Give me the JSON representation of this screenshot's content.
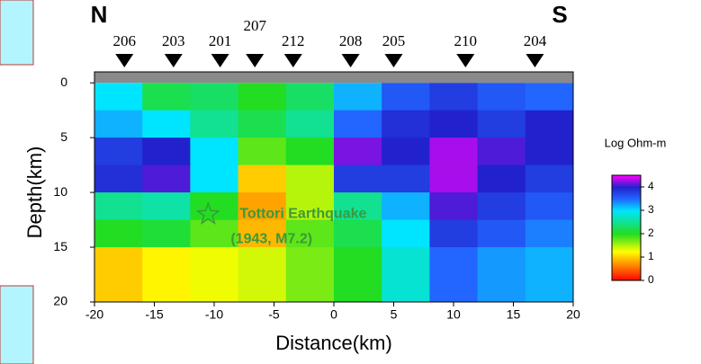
{
  "chart_data": {
    "type": "heatmap",
    "x_label": "Distance(km)",
    "y_label": "Depth(km)",
    "left_label": "N",
    "right_label": "S",
    "xlim": [
      -20,
      20
    ],
    "xticks": [
      -20,
      -15,
      -10,
      -5,
      0,
      5,
      10,
      15,
      20
    ],
    "ylim": [
      -1,
      20
    ],
    "yticks": [
      0,
      5,
      10,
      15,
      20
    ],
    "x_edges": [
      -20,
      -16,
      -12,
      -8,
      -4,
      0,
      4,
      8,
      12,
      16,
      20
    ],
    "y_edges": [
      0,
      2.5,
      5,
      7.5,
      10,
      12.5,
      15,
      17.5,
      20
    ],
    "z": [
      [
        3.0,
        2.2,
        2.3,
        2.0,
        2.3,
        3.2,
        3.6,
        3.8,
        3.6,
        3.5
      ],
      [
        3.2,
        3.0,
        2.5,
        2.2,
        2.5,
        3.5,
        3.9,
        4.0,
        3.8,
        4.0
      ],
      [
        3.8,
        4.0,
        3.0,
        1.8,
        2.0,
        4.2,
        4.0,
        4.3,
        4.1,
        4.0
      ],
      [
        3.9,
        4.1,
        3.0,
        1.0,
        1.5,
        3.8,
        3.8,
        4.3,
        4.0,
        3.8
      ],
      [
        2.5,
        2.6,
        2.0,
        0.8,
        1.5,
        2.5,
        3.2,
        4.1,
        3.8,
        3.6
      ],
      [
        2.0,
        2.1,
        1.8,
        0.9,
        1.8,
        2.2,
        3.0,
        3.8,
        3.6,
        3.4
      ],
      [
        1.0,
        1.2,
        1.3,
        1.4,
        1.7,
        2.0,
        2.8,
        3.5,
        3.3,
        3.2
      ],
      [
        1.0,
        1.2,
        1.3,
        1.4,
        1.7,
        2.0,
        2.8,
        3.5,
        3.3,
        3.2
      ]
    ],
    "colorscale": [
      [
        0,
        "#ff0000"
      ],
      [
        0.75,
        "#ff9900"
      ],
      [
        1.25,
        "#ffff00"
      ],
      [
        2,
        "#22dd22"
      ],
      [
        3,
        "#00e5ff"
      ],
      [
        3.5,
        "#2266ff"
      ],
      [
        4,
        "#2222cc"
      ],
      [
        4.5,
        "#ff00ff"
      ]
    ],
    "colorbar_label": "Log Ohm-m",
    "clim": [
      0,
      4.5
    ],
    "cticks": [
      0,
      1,
      2,
      3,
      4
    ],
    "stations": [
      {
        "label": "206",
        "x": -17.5
      },
      {
        "label": "203",
        "x": -13.4
      },
      {
        "label": "201",
        "x": -9.5
      },
      {
        "label": "207",
        "x": -6.6
      },
      {
        "label": "212",
        "x": -3.4
      },
      {
        "label": "208",
        "x": 1.4
      },
      {
        "label": "205",
        "x": 5
      },
      {
        "label": "210",
        "x": 11
      },
      {
        "label": "204",
        "x": 16.8
      }
    ],
    "earthquake": {
      "x": -10.5,
      "depth": 12,
      "lines": [
        "Tottori Earthquake",
        "(1943, M7.2)"
      ],
      "color": "#3a9a3a"
    }
  }
}
